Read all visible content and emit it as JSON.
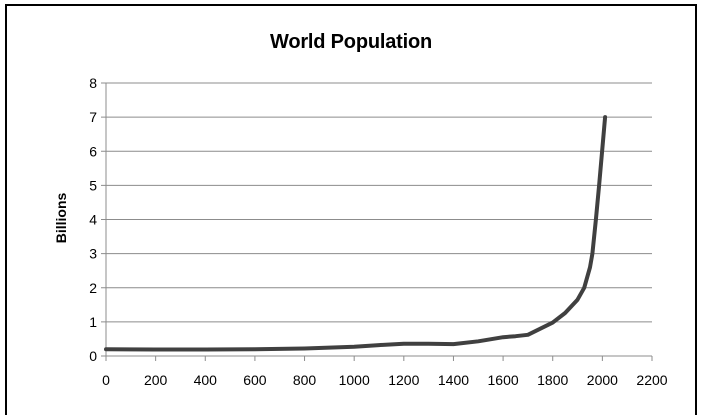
{
  "chart_data": {
    "type": "line",
    "title": "World Population",
    "xlabel": "",
    "ylabel": "Billions",
    "xlim": [
      0,
      2200
    ],
    "ylim": [
      0,
      8
    ],
    "x_ticks": [
      0,
      200,
      400,
      600,
      800,
      1000,
      1200,
      1400,
      1600,
      1800,
      2000,
      2200
    ],
    "y_ticks": [
      0,
      1,
      2,
      3,
      4,
      5,
      6,
      7,
      8
    ],
    "grid": true,
    "legend": "none",
    "series": [
      {
        "color": "#404040",
        "x": [
          0,
          200,
          400,
          600,
          800,
          1000,
          1100,
          1200,
          1300,
          1400,
          1500,
          1600,
          1650,
          1700,
          1750,
          1800,
          1850,
          1900,
          1927,
          1950,
          1960,
          1974,
          1987,
          1999,
          2011
        ],
        "y": [
          0.2,
          0.19,
          0.19,
          0.2,
          0.22,
          0.27,
          0.32,
          0.36,
          0.36,
          0.35,
          0.43,
          0.55,
          0.58,
          0.62,
          0.8,
          0.98,
          1.26,
          1.65,
          2.0,
          2.6,
          3.0,
          4.0,
          5.0,
          6.0,
          7.0
        ]
      }
    ]
  }
}
